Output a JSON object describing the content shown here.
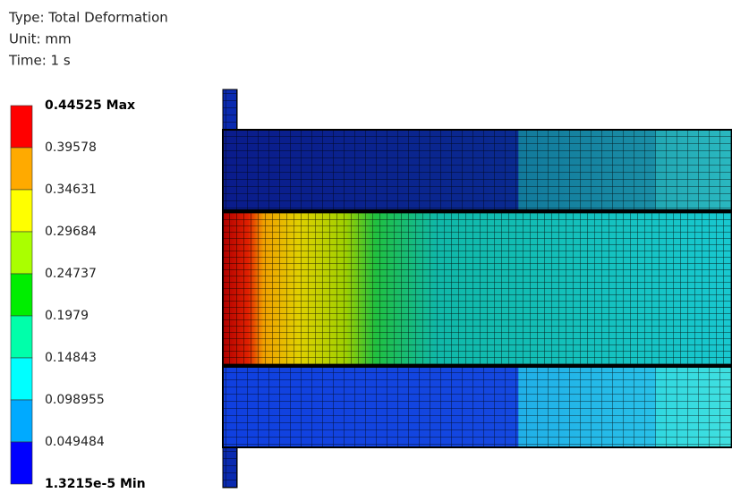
{
  "header": {
    "type_line": "Type: Total Deformation",
    "unit_line": "Unit: mm",
    "time_line": "Time: 1 s"
  },
  "legend": {
    "labels": [
      "0.44525 Max",
      "0.39578",
      "0.34631",
      "0.29684",
      "0.24737",
      "0.1979",
      "0.14843",
      "0.098955",
      "0.049484",
      "1.3215e-5 Min"
    ]
  }
}
